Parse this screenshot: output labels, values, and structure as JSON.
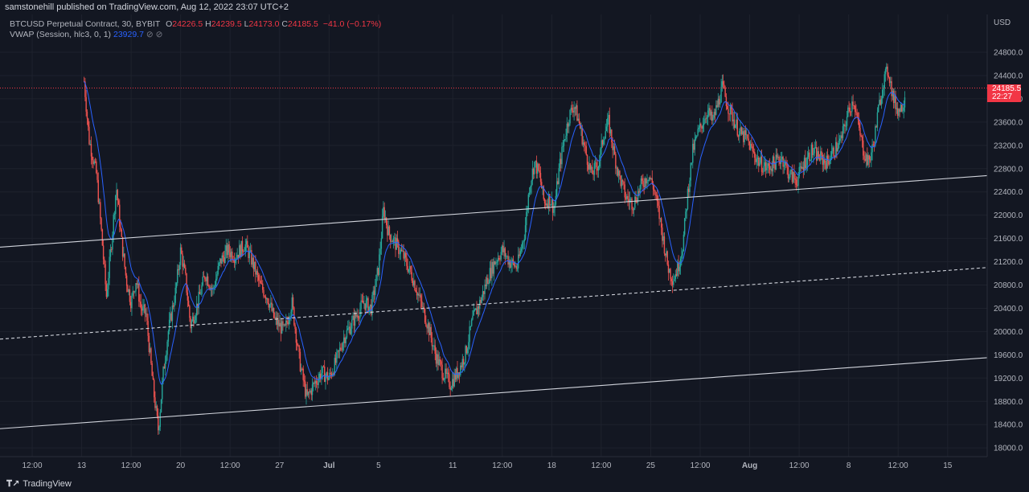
{
  "header": {
    "published": "samstonehill published on TradingView.com, Aug 12, 2022 23:07 UTC+2"
  },
  "legend": {
    "symbol": "BTCUSD Perpetual Contract, 30, BYBIT",
    "o_label": "O",
    "o": "24226.5",
    "h_label": "H",
    "h": "24239.5",
    "l_label": "L",
    "l": "24173.0",
    "c_label": "C",
    "c": "24185.5",
    "change": "−41.0 (−0.17%)",
    "vwap_label": "VWAP (Session, hlc3, 0, 1)",
    "vwap_value": "23929.7",
    "eye_icon": "⊘",
    "gear_icon": "⊘"
  },
  "price_tag": {
    "price": "24185.5",
    "countdown": "22:27"
  },
  "footer": {
    "brand": "TradingView",
    "logo_icon": "tradingview-logo"
  },
  "colors": {
    "background": "#131722",
    "grid": "#1e222d",
    "up": "#26a69a",
    "down": "#ef5350",
    "vwap": "#2962ff",
    "channel": "#d1d4dc",
    "price_line": "#f23645"
  },
  "chart_data": {
    "type": "candlestick",
    "title": "BTCUSD Perpetual Contract, 30, BYBIT",
    "currency_label": "USD",
    "y_ticks": [
      24800,
      24400,
      24000,
      23600,
      23200,
      22800,
      22400,
      22000,
      21600,
      21200,
      20800,
      20400,
      20000,
      19600,
      19200,
      18800,
      18400,
      18000
    ],
    "y_tick_labels": [
      "24800.0",
      "24400.0",
      "24000.0",
      "23600.0",
      "23200.0",
      "22800.0",
      "22400.0",
      "22000.0",
      "21600.0",
      "21200.0",
      "20800.0",
      "20400.0",
      "20000.0",
      "19600.0",
      "19200.0",
      "18800.0",
      "18400.0",
      "18000.0"
    ],
    "ylim": [
      17850,
      25450
    ],
    "x_ticks": [
      {
        "label": "12:00",
        "day": -1.0
      },
      {
        "label": "13",
        "day": 0.0
      },
      {
        "label": "12:00",
        "day": 1.0
      },
      {
        "label": "20",
        "day": 2.0
      },
      {
        "label": "12:00",
        "day": 3.0
      },
      {
        "label": "27",
        "day": 4.0
      },
      {
        "label": "Jul",
        "day": 5.0,
        "bold": true
      },
      {
        "label": "5",
        "day": 6.0
      },
      {
        "label": "11",
        "day": 7.5
      },
      {
        "label": "12:00",
        "day": 8.5
      },
      {
        "label": "18",
        "day": 9.5
      },
      {
        "label": "12:00",
        "day": 10.5
      },
      {
        "label": "25",
        "day": 11.5
      },
      {
        "label": "12:00",
        "day": 12.5
      },
      {
        "label": "Aug",
        "day": 13.5,
        "bold": true
      },
      {
        "label": "12:00",
        "day": 14.5
      },
      {
        "label": "8",
        "day": 15.5
      },
      {
        "label": "12:00",
        "day": 16.5
      },
      {
        "label": "15",
        "day": 17.5
      }
    ],
    "xlim": [
      -1.65,
      18.3
    ],
    "last_price": 24185.5,
    "vwap": 23929.7,
    "channel_lines": [
      {
        "style": "solid",
        "start": [
          -1.65,
          21450
        ],
        "end": [
          18.3,
          22680
        ]
      },
      {
        "style": "dashed",
        "start": [
          -1.65,
          19870
        ],
        "end": [
          18.3,
          21100
        ]
      },
      {
        "style": "solid",
        "start": [
          -1.65,
          18330
        ],
        "end": [
          18.3,
          19550
        ]
      }
    ],
    "price_path": [
      [
        0.05,
        24300
      ],
      [
        0.1,
        23800
      ],
      [
        0.15,
        23300
      ],
      [
        0.3,
        22700
      ],
      [
        0.4,
        21700
      ],
      [
        0.5,
        20600
      ],
      [
        0.6,
        21500
      ],
      [
        0.7,
        22500
      ],
      [
        0.8,
        21600
      ],
      [
        0.9,
        20900
      ],
      [
        1.0,
        20500
      ],
      [
        1.1,
        20900
      ],
      [
        1.2,
        20400
      ],
      [
        1.3,
        20300
      ],
      [
        1.45,
        19000
      ],
      [
        1.55,
        18300
      ],
      [
        1.65,
        19300
      ],
      [
        1.75,
        20000
      ],
      [
        1.9,
        20700
      ],
      [
        2.0,
        21400
      ],
      [
        2.1,
        20900
      ],
      [
        2.2,
        20100
      ],
      [
        2.35,
        20500
      ],
      [
        2.5,
        21000
      ],
      [
        2.65,
        20700
      ],
      [
        2.8,
        21200
      ],
      [
        2.95,
        21400
      ],
      [
        3.1,
        21300
      ],
      [
        3.3,
        21500
      ],
      [
        3.45,
        21200
      ],
      [
        3.6,
        20800
      ],
      [
        3.75,
        20600
      ],
      [
        3.9,
        20200
      ],
      [
        4.1,
        20000
      ],
      [
        4.25,
        20500
      ],
      [
        4.4,
        19500
      ],
      [
        4.55,
        18850
      ],
      [
        4.7,
        19100
      ],
      [
        4.85,
        19300
      ],
      [
        5.0,
        19200
      ],
      [
        5.15,
        19500
      ],
      [
        5.3,
        19900
      ],
      [
        5.5,
        20200
      ],
      [
        5.7,
        20500
      ],
      [
        5.85,
        20400
      ],
      [
        6.0,
        21100
      ],
      [
        6.1,
        22100
      ],
      [
        6.2,
        21700
      ],
      [
        6.35,
        21500
      ],
      [
        6.5,
        21300
      ],
      [
        6.7,
        20900
      ],
      [
        6.85,
        20500
      ],
      [
        7.0,
        20100
      ],
      [
        7.15,
        19600
      ],
      [
        7.3,
        19300
      ],
      [
        7.45,
        19100
      ],
      [
        7.6,
        19300
      ],
      [
        7.75,
        19600
      ],
      [
        7.9,
        20200
      ],
      [
        8.05,
        20500
      ],
      [
        8.2,
        20900
      ],
      [
        8.35,
        21200
      ],
      [
        8.5,
        21400
      ],
      [
        8.65,
        21200
      ],
      [
        8.8,
        21100
      ],
      [
        8.95,
        21700
      ],
      [
        9.05,
        22500
      ],
      [
        9.15,
        22900
      ],
      [
        9.25,
        22700
      ],
      [
        9.35,
        22200
      ],
      [
        9.45,
        22300
      ],
      [
        9.55,
        22100
      ],
      [
        9.65,
        22800
      ],
      [
        9.75,
        23300
      ],
      [
        9.85,
        23700
      ],
      [
        9.95,
        23900
      ],
      [
        10.05,
        23600
      ],
      [
        10.15,
        23200
      ],
      [
        10.3,
        22700
      ],
      [
        10.45,
        22900
      ],
      [
        10.55,
        23400
      ],
      [
        10.65,
        23600
      ],
      [
        10.75,
        23100
      ],
      [
        10.85,
        22700
      ],
      [
        11.0,
        22300
      ],
      [
        11.15,
        22200
      ],
      [
        11.3,
        22500
      ],
      [
        11.45,
        22700
      ],
      [
        11.55,
        22500
      ],
      [
        11.65,
        22100
      ],
      [
        11.75,
        21600
      ],
      [
        11.85,
        21100
      ],
      [
        11.95,
        20900
      ],
      [
        12.05,
        21100
      ],
      [
        12.15,
        21500
      ],
      [
        12.25,
        22400
      ],
      [
        12.35,
        23100
      ],
      [
        12.45,
        23400
      ],
      [
        12.55,
        23600
      ],
      [
        12.65,
        23800
      ],
      [
        12.75,
        23600
      ],
      [
        12.85,
        23900
      ],
      [
        12.95,
        24200
      ],
      [
        13.05,
        23900
      ],
      [
        13.15,
        23700
      ],
      [
        13.3,
        23400
      ],
      [
        13.45,
        23300
      ],
      [
        13.55,
        23100
      ],
      [
        13.7,
        22900
      ],
      [
        13.85,
        22800
      ],
      [
        14.0,
        22900
      ],
      [
        14.15,
        23000
      ],
      [
        14.3,
        22700
      ],
      [
        14.45,
        22600
      ],
      [
        14.6,
        22900
      ],
      [
        14.75,
        23100
      ],
      [
        14.9,
        23000
      ],
      [
        15.05,
        22900
      ],
      [
        15.2,
        23100
      ],
      [
        15.35,
        23300
      ],
      [
        15.5,
        23800
      ],
      [
        15.6,
        24000
      ],
      [
        15.7,
        23500
      ],
      [
        15.8,
        23100
      ],
      [
        15.9,
        22900
      ],
      [
        16.0,
        23200
      ],
      [
        16.1,
        23800
      ],
      [
        16.2,
        24300
      ],
      [
        16.3,
        24500
      ],
      [
        16.4,
        24000
      ],
      [
        16.5,
        23800
      ],
      [
        16.6,
        23900
      ],
      [
        16.65,
        24185
      ]
    ]
  }
}
